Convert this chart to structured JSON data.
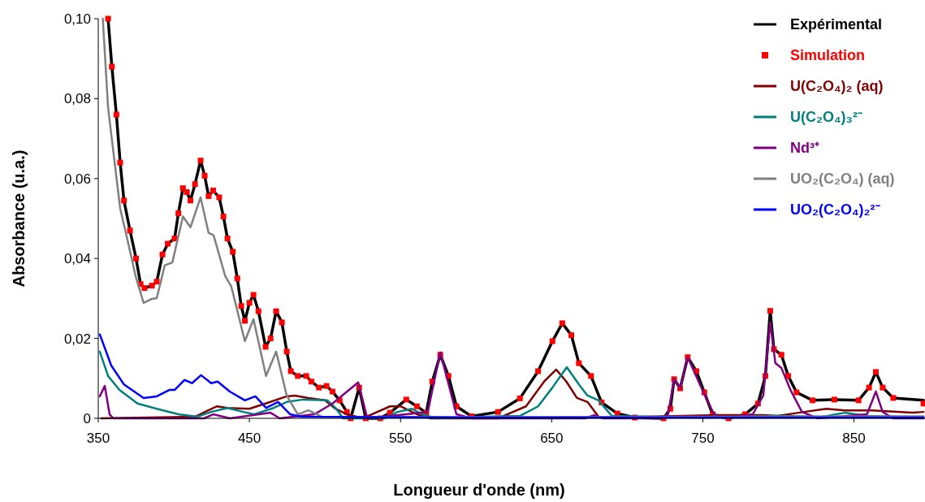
{
  "chart_data": {
    "type": "line",
    "xlabel": "Longueur d'onde (nm)",
    "ylabel": "Absorbance (u.a.)",
    "xlim": [
      350,
      897
    ],
    "xticks": [
      350,
      450,
      550,
      650,
      750,
      850
    ],
    "ylim": [
      0,
      0.1
    ],
    "yticks": [
      0,
      {
        "value": 0.02,
        "label": "0,02"
      },
      {
        "value": 0.04,
        "label": "0,04"
      },
      {
        "value": 0.06,
        "label": "0,06"
      },
      {
        "value": 0.08,
        "label": "0,08"
      },
      {
        "value": 0.1,
        "label": "0,10"
      }
    ],
    "legend": "top right",
    "grid": false,
    "series": [
      {
        "name": "Expérimental",
        "color": "#000000",
        "x": [
          356.5,
          359,
          362,
          364.5,
          367,
          371,
          375,
          378,
          380.6,
          385.5,
          388.7,
          392.5,
          396,
          400.5,
          403,
          406,
          408.6,
          411,
          414,
          417.7,
          420.4,
          423,
          426,
          430,
          432.8,
          435.5,
          439,
          442,
          444.6,
          447,
          450,
          452.7,
          456,
          460.7,
          464,
          467.7,
          471.5,
          474.7,
          477.4,
          482,
          487.6,
          491,
          496,
          501,
          505,
          509.7,
          514.5,
          517,
          522.6,
          527,
          536.6,
          543,
          553.8,
          560.8,
          567,
          571,
          576.3,
          581.7,
          587,
          597,
          614.5,
          629,
          641,
          650.5,
          657,
          663,
          668,
          676,
          683,
          693.5,
          705,
          724,
          728.5,
          731,
          735,
          740,
          745.7,
          751,
          756.5,
          767,
          778,
          786.5,
          791.4,
          794.6,
          797,
          802,
          806.5,
          812,
          822.6,
          837,
          853,
          860,
          864.5,
          869,
          876,
          896
        ],
        "values": [
          0.1,
          0.088,
          0.076,
          0.064,
          0.0545,
          0.047,
          0.04,
          0.0336,
          0.0326,
          0.0332,
          0.0342,
          0.041,
          0.0437,
          0.045,
          0.0513,
          0.0576,
          0.0566,
          0.0545,
          0.0586,
          0.0645,
          0.0607,
          0.0556,
          0.057,
          0.0553,
          0.0505,
          0.045,
          0.0417,
          0.035,
          0.0281,
          0.0244,
          0.0289,
          0.0309,
          0.0268,
          0.0179,
          0.02,
          0.0268,
          0.024,
          0.0167,
          0.0118,
          0.0106,
          0.0106,
          0.0092,
          0.0077,
          0.0081,
          0.0067,
          0.0045,
          0.0016,
          0,
          0.0077,
          0,
          0,
          0.0014,
          0.0047,
          0.003,
          0.0014,
          0.0092,
          0.0159,
          0.0106,
          0.003,
          0.0005,
          0.0016,
          0.005,
          0.0118,
          0.0193,
          0.0238,
          0.0208,
          0.0138,
          0.0106,
          0.004,
          0.0012,
          0.0002,
          0,
          0.0024,
          0.0098,
          0.0075,
          0.0153,
          0.0118,
          0.0065,
          0.001,
          0,
          0.001,
          0.0037,
          0.0106,
          0.0269,
          0.0173,
          0.0159,
          0.0106,
          0.0065,
          0.0045,
          0.0047,
          0.0045,
          0.0077,
          0.0116,
          0.0077,
          0.0051,
          0.0045
        ]
      },
      {
        "name": "Simulation",
        "type": "scatter",
        "marker": "square",
        "color": "#ff0000",
        "x": [
          356.5,
          359,
          362,
          364.5,
          367,
          371,
          375,
          378,
          380.6,
          385.5,
          388.7,
          392.5,
          396,
          400.5,
          403,
          406,
          408.6,
          411,
          414,
          417.7,
          420.4,
          423,
          426,
          430,
          432.8,
          435.5,
          439,
          442,
          444.6,
          447,
          450,
          452.7,
          456,
          460.7,
          464,
          467.7,
          471.5,
          474.7,
          477.4,
          482,
          487.6,
          491,
          496,
          501,
          505,
          509.7,
          514.5,
          517,
          522.6,
          527,
          536.6,
          543,
          553.8,
          560.8,
          567,
          571,
          576.3,
          581.7,
          587,
          597,
          614.5,
          629,
          641,
          650.5,
          657,
          663,
          668,
          676,
          683,
          693.5,
          705,
          724,
          728.5,
          731,
          735,
          740,
          745.7,
          751,
          756.5,
          767,
          778,
          786.5,
          791.4,
          794.6,
          797,
          802,
          806.5,
          812,
          822.6,
          837,
          853,
          860,
          864.5,
          869,
          876,
          896
        ],
        "values": [
          0.1,
          0.088,
          0.076,
          0.064,
          0.0545,
          0.047,
          0.04,
          0.0336,
          0.0326,
          0.0332,
          0.0342,
          0.041,
          0.0437,
          0.045,
          0.0513,
          0.0576,
          0.0566,
          0.0545,
          0.0586,
          0.0645,
          0.0607,
          0.0556,
          0.057,
          0.0553,
          0.0505,
          0.045,
          0.0417,
          0.035,
          0.0281,
          0.0244,
          0.0289,
          0.0309,
          0.0268,
          0.0179,
          0.02,
          0.0268,
          0.024,
          0.0167,
          0.0118,
          0.0106,
          0.0106,
          0.0092,
          0.0077,
          0.0081,
          0.0067,
          0.0045,
          0.0016,
          0,
          0.0077,
          0,
          0,
          0.0014,
          0.0047,
          0.003,
          0.0014,
          0.0092,
          0.0159,
          0.0106,
          0.003,
          0.0005,
          0.0016,
          0.005,
          0.0118,
          0.0193,
          0.0238,
          0.0208,
          0.0138,
          0.0106,
          0.004,
          0.0012,
          0.0002,
          0,
          0.0024,
          0.0098,
          0.0075,
          0.0153,
          0.0118,
          0.0065,
          0.001,
          0,
          0.001,
          0.0037,
          0.0106,
          0.0269,
          0.0173,
          0.0159,
          0.0106,
          0.0065,
          0.0045,
          0.0047,
          0.0045,
          0.0077,
          0.0116,
          0.0077,
          0.0051,
          0.0037
        ]
      },
      {
        "name": "U(C₂O₄)₂ (aq)",
        "color": "#800000",
        "x": [
          352,
          414,
          428.5,
          435.5,
          450,
          460.7,
          474.7,
          480,
          489,
          500,
          507,
          514.5,
          525,
          543,
          550,
          561,
          570,
          614.5,
          633,
          645,
          653,
          659.7,
          666.7,
          673.7,
          681,
          700,
          760,
          790,
          799.5,
          817,
          831.7,
          844,
          862,
          888.7,
          896
        ],
        "values": [
          0,
          0.0004,
          0.003,
          0.0026,
          0.0024,
          0.0037,
          0.0055,
          0.0057,
          0.0051,
          0.0045,
          0.0024,
          0.001,
          0,
          0.003,
          0.003,
          0.001,
          0,
          0,
          0.003,
          0.0092,
          0.0122,
          0.0092,
          0.0051,
          0.0041,
          0.0004,
          0.0003,
          0.0008,
          0.0008,
          0.0006,
          0.0016,
          0.0024,
          0.002,
          0.002,
          0.0014,
          0.0016
        ]
      },
      {
        "name": "U(C₂O₄)₃²⁻",
        "color": "#008080",
        "x": [
          351,
          356.5,
          364,
          376,
          388.7,
          403,
          415.6,
          424.7,
          435.5,
          446,
          453,
          466,
          474.7,
          485.5,
          501.6,
          507,
          512,
          539,
          548,
          557.5,
          564.5,
          573.6,
          614.5,
          629,
          641,
          650.5,
          660,
          668,
          673.7,
          681,
          689.8,
          750,
          799.5,
          829,
          844,
          858.6,
          896
        ],
        "values": [
          0.0167,
          0.0106,
          0.0071,
          0.0037,
          0.0024,
          0.001,
          0.0004,
          0.0016,
          0.0026,
          0.0016,
          0.001,
          0.0026,
          0.0041,
          0.0047,
          0.0045,
          0.0026,
          0,
          0,
          0.0016,
          0.0024,
          0.001,
          0,
          0.0005,
          0.0006,
          0.003,
          0.0077,
          0.0128,
          0.0085,
          0.0057,
          0.0045,
          0.0006,
          0.0002,
          0.0006,
          0.0004,
          0.0014,
          0.0006,
          0.0003
        ]
      },
      {
        "name": "Nd³⁺",
        "color": "#800080",
        "x": [
          351,
          354.3,
          357.5,
          360,
          420,
          426,
          437,
          464,
          470,
          493,
          505,
          522,
          528,
          568,
          576.3,
          587,
          597,
          672,
          678,
          684,
          723,
          727,
          731,
          735,
          740,
          751,
          758,
          765,
          783,
          790,
          794.6,
          798,
          802,
          808,
          815.6,
          826,
          858.6,
          864.5,
          869,
          876,
          896
        ],
        "values": [
          0.0055,
          0.0081,
          0.001,
          0,
          0,
          0.001,
          0,
          0.0014,
          0,
          0.001,
          0.0037,
          0.009,
          0,
          0.0016,
          0.0165,
          0.001,
          0,
          0,
          0.0008,
          0,
          0,
          0.001,
          0.0098,
          0.0075,
          0.0153,
          0.006,
          0.0006,
          0,
          0.001,
          0.0057,
          0.024,
          0.0138,
          0.0126,
          0.0071,
          0.0016,
          0,
          0.001,
          0.0067,
          0.0016,
          0,
          0
        ]
      },
      {
        "name": "UO₂(C₂O₄) (aq)",
        "color": "#808080",
        "x": [
          353,
          356.5,
          360,
          364.5,
          369,
          374.7,
          380,
          385.5,
          388.7,
          394,
          399,
          406,
          411,
          417.7,
          423,
          426.3,
          434,
          438,
          447,
          452.7,
          461,
          467.7,
          474.7,
          482,
          489,
          498,
          600,
          896
        ],
        "values": [
          0.1,
          0.0777,
          0.0667,
          0.0525,
          0.0452,
          0.0356,
          0.0289,
          0.0299,
          0.0301,
          0.0383,
          0.039,
          0.0505,
          0.0478,
          0.0553,
          0.0464,
          0.0458,
          0.0356,
          0.033,
          0.0193,
          0.0248,
          0.0106,
          0.0167,
          0.0057,
          0.001,
          0.002,
          0.0004,
          0.0003,
          0.0005
        ]
      },
      {
        "name": "UO₂(C₂O₄)₂²⁻",
        "color": "#0000ff",
        "x": [
          351,
          358.6,
          367,
          380,
          388.7,
          397,
          400.5,
          407,
          412,
          418,
          424.7,
          429,
          437,
          447,
          454,
          461,
          469,
          477,
          484,
          600,
          896
        ],
        "values": [
          0.021,
          0.0132,
          0.0085,
          0.0051,
          0.0055,
          0.0071,
          0.0071,
          0.0096,
          0.0088,
          0.0108,
          0.0088,
          0.0092,
          0.0067,
          0.0045,
          0.0055,
          0.0026,
          0.0041,
          0.001,
          0.0004,
          0.0002,
          0.0002
        ]
      }
    ]
  }
}
